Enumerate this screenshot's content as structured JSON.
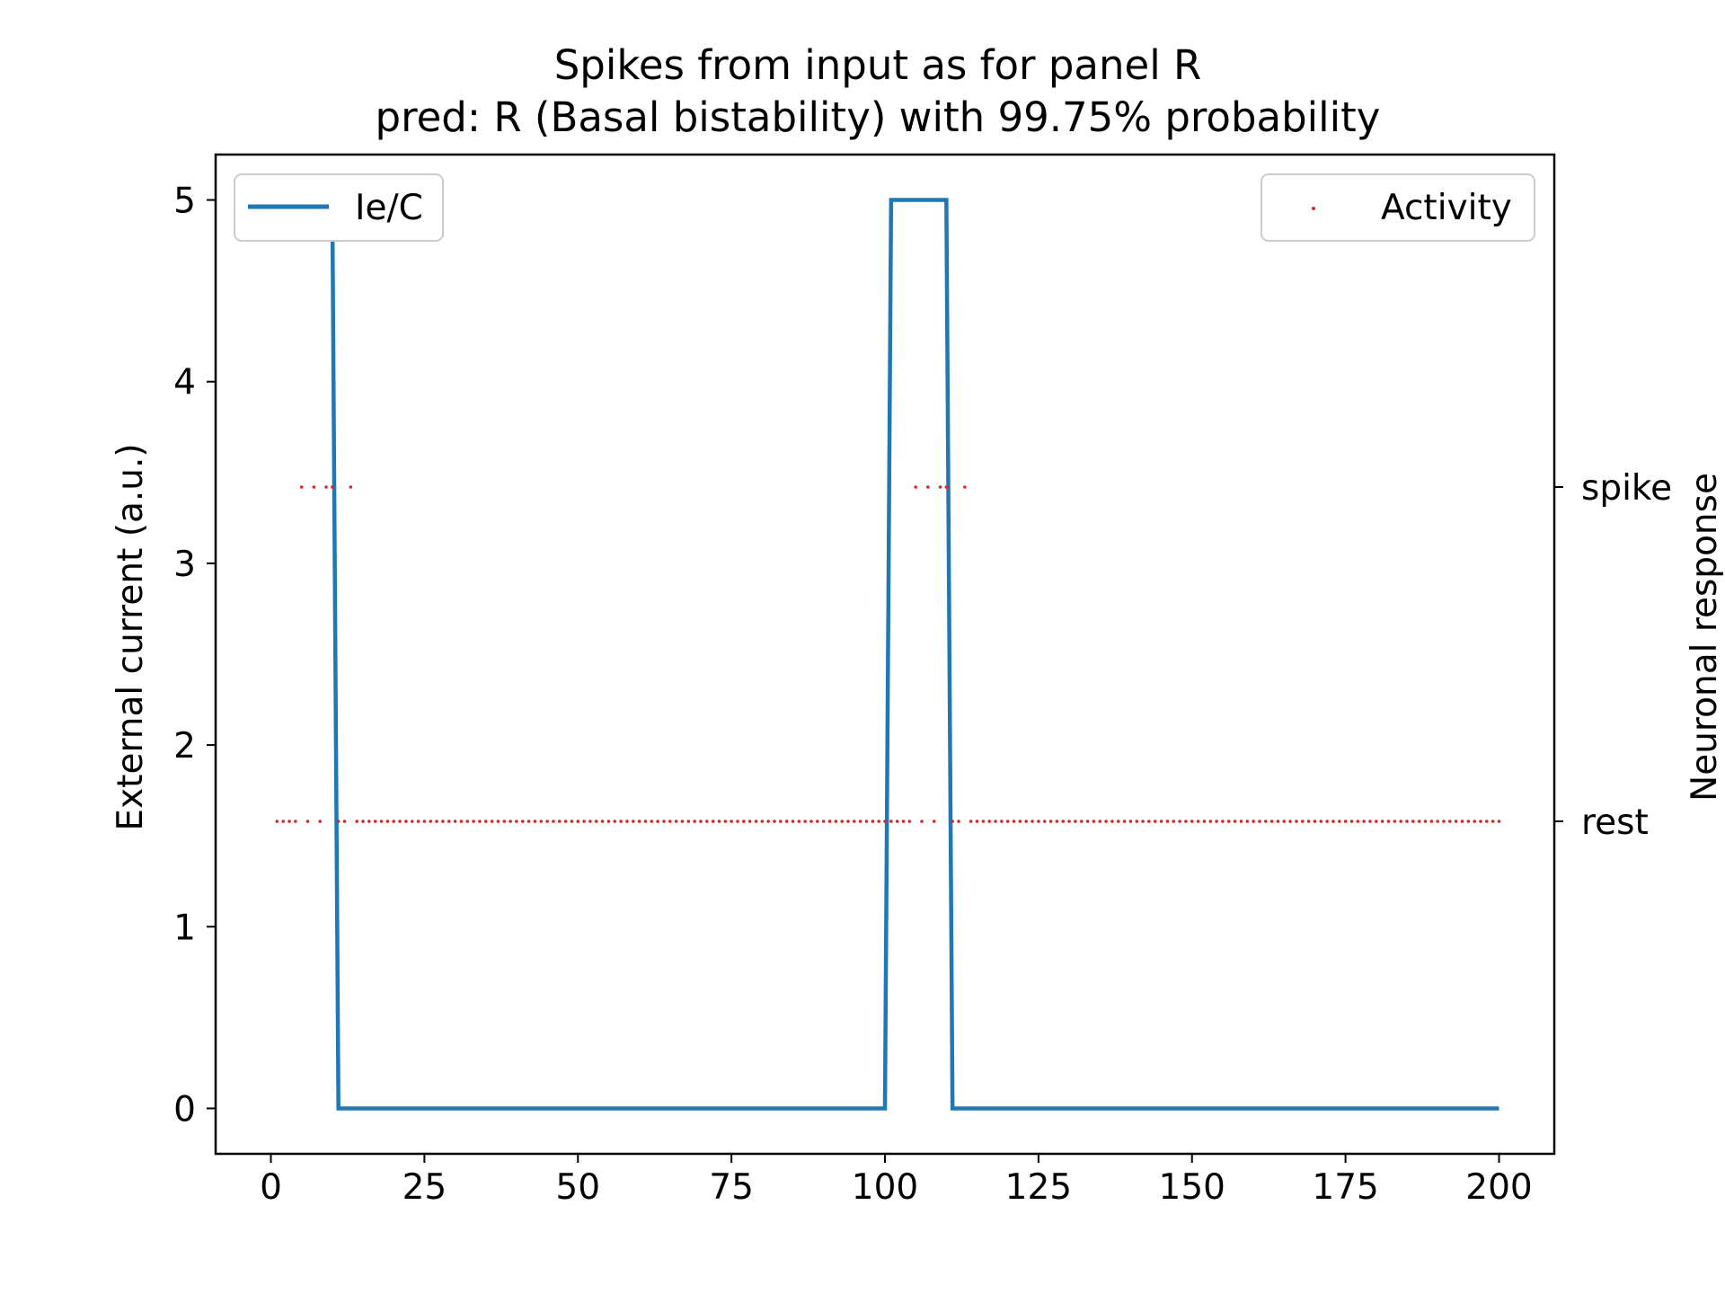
{
  "chart_data": {
    "type": "line",
    "title": "Spikes from input as for panel R",
    "subtitle": "pred: R (Basal bistability) with 99.75% probability",
    "xlabel": "",
    "ylabel": "External current (a.u.)",
    "y2label": "Neuronal response",
    "xlim": [
      -9,
      209
    ],
    "ylim": [
      -0.25,
      5.25
    ],
    "xticks": [
      0,
      25,
      50,
      75,
      100,
      125,
      150,
      175,
      200
    ],
    "yticks": [
      0,
      1,
      2,
      3,
      4,
      5
    ],
    "y2ticks": [
      "spike",
      "rest"
    ],
    "grid": false,
    "series": [
      {
        "name": "Ie/C",
        "kind": "line",
        "color": "#1f77b4",
        "x": [
          1,
          10,
          11,
          100,
          101,
          110,
          111,
          200
        ],
        "y": [
          5,
          5,
          0,
          0,
          5,
          5,
          0,
          0
        ]
      },
      {
        "name": "Activity",
        "kind": "scatter",
        "color": "#d62728",
        "spike_y": 3.42,
        "rest_y": 1.58,
        "spike_times": [
          5,
          7,
          9,
          10,
          13,
          105,
          107,
          109,
          110,
          113
        ],
        "rest_times_missing": [
          5,
          7,
          9,
          10,
          13,
          105,
          107,
          109,
          110,
          113
        ],
        "x_range": [
          1,
          200
        ]
      }
    ],
    "legend": [
      {
        "label": "Ie/C",
        "placement": "upper-left"
      },
      {
        "label": "Activity",
        "placement": "upper-right"
      }
    ]
  }
}
